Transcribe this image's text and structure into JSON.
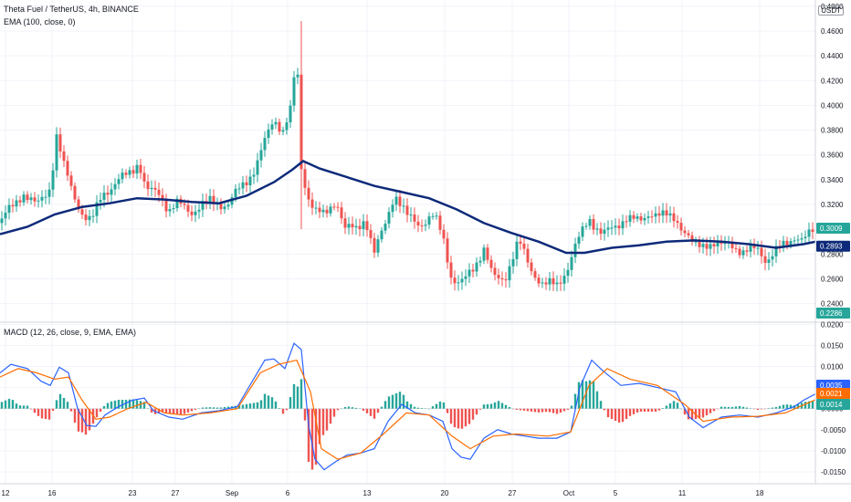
{
  "header": {
    "title": "Theta Fuel / TetherUS, 4h, BINANCE",
    "ema_label": "EMA (100, close, 0)",
    "macd_label": "MACD (12, 26, close, 9, EMA, EMA)",
    "currency": "USDT"
  },
  "colors": {
    "up": "#26a69a",
    "down": "#ef5350",
    "ema": "#0d2a7a",
    "macd": "#2962ff",
    "signal": "#ff6d00",
    "grid": "#f0f3fa",
    "last_price": "#26a69a",
    "ema_tag": "#0d2a7a",
    "low_tag": "#26a69a"
  },
  "chart_data": [
    {
      "type": "candlestick",
      "title": "Theta Fuel / TetherUS, 4h, BINANCE",
      "x_ticks": [
        "12",
        "16",
        "23",
        "27",
        "Sep",
        "6",
        "13",
        "20",
        "27",
        "Oct",
        "5",
        "11",
        "18"
      ],
      "y_ticks": [
        "0.2400",
        "0.2600",
        "0.2800",
        "0.3000",
        "0.3200",
        "0.3400",
        "0.3600",
        "0.3800",
        "0.4000",
        "0.4200",
        "0.4400",
        "0.4600",
        "0.4800"
      ],
      "ylim": [
        0.225,
        0.485
      ],
      "price_path": [
        [
          0,
          0.305
        ],
        [
          10,
          0.315
        ],
        [
          25,
          0.33
        ],
        [
          40,
          0.318
        ],
        [
          55,
          0.335
        ],
        [
          62,
          0.375
        ],
        [
          70,
          0.35
        ],
        [
          80,
          0.33
        ],
        [
          92,
          0.31
        ],
        [
          100,
          0.305
        ],
        [
          112,
          0.33
        ],
        [
          125,
          0.335
        ],
        [
          140,
          0.345
        ],
        [
          152,
          0.355
        ],
        [
          160,
          0.33
        ],
        [
          175,
          0.33
        ],
        [
          185,
          0.315
        ],
        [
          195,
          0.32
        ],
        [
          210,
          0.315
        ],
        [
          230,
          0.322
        ],
        [
          250,
          0.32
        ],
        [
          265,
          0.335
        ],
        [
          280,
          0.35
        ],
        [
          290,
          0.37
        ],
        [
          300,
          0.39
        ],
        [
          310,
          0.38
        ],
        [
          318,
          0.395
        ],
        [
          325,
          0.44
        ],
        [
          330,
          0.35
        ],
        [
          336,
          0.33
        ],
        [
          345,
          0.315
        ],
        [
          355,
          0.31
        ],
        [
          368,
          0.325
        ],
        [
          378,
          0.3
        ],
        [
          390,
          0.3
        ],
        [
          400,
          0.31
        ],
        [
          410,
          0.28
        ],
        [
          420,
          0.3
        ],
        [
          432,
          0.33
        ],
        [
          445,
          0.31
        ],
        [
          460,
          0.305
        ],
        [
          475,
          0.31
        ],
        [
          485,
          0.295
        ],
        [
          495,
          0.26
        ],
        [
          505,
          0.255
        ],
        [
          515,
          0.265
        ],
        [
          530,
          0.285
        ],
        [
          540,
          0.26
        ],
        [
          552,
          0.26
        ],
        [
          568,
          0.29
        ],
        [
          580,
          0.27
        ],
        [
          595,
          0.255
        ],
        [
          610,
          0.255
        ],
        [
          622,
          0.27
        ],
        [
          630,
          0.285
        ],
        [
          645,
          0.31
        ],
        [
          660,
          0.295
        ],
        [
          670,
          0.3
        ],
        [
          685,
          0.31
        ],
        [
          700,
          0.305
        ],
        [
          712,
          0.315
        ],
        [
          725,
          0.31
        ],
        [
          740,
          0.31
        ],
        [
          752,
          0.295
        ],
        [
          760,
          0.285
        ],
        [
          775,
          0.29
        ],
        [
          790,
          0.285
        ],
        [
          800,
          0.29
        ],
        [
          815,
          0.28
        ],
        [
          830,
          0.285
        ],
        [
          840,
          0.275
        ],
        [
          855,
          0.285
        ],
        [
          870,
          0.295
        ],
        [
          880,
          0.29
        ],
        [
          893,
          0.301
        ]
      ],
      "ema_series": {
        "name": "EMA (100, close, 0)",
        "points": [
          [
            0,
            0.296
          ],
          [
            30,
            0.302
          ],
          [
            60,
            0.312
          ],
          [
            90,
            0.318
          ],
          [
            120,
            0.321
          ],
          [
            150,
            0.325
          ],
          [
            180,
            0.324
          ],
          [
            210,
            0.322
          ],
          [
            240,
            0.321
          ],
          [
            270,
            0.327
          ],
          [
            300,
            0.338
          ],
          [
            320,
            0.348
          ],
          [
            332,
            0.355
          ],
          [
            350,
            0.349
          ],
          [
            380,
            0.342
          ],
          [
            410,
            0.335
          ],
          [
            440,
            0.33
          ],
          [
            470,
            0.325
          ],
          [
            500,
            0.316
          ],
          [
            530,
            0.305
          ],
          [
            560,
            0.297
          ],
          [
            590,
            0.29
          ],
          [
            620,
            0.281
          ],
          [
            640,
            0.281
          ],
          [
            670,
            0.285
          ],
          [
            700,
            0.287
          ],
          [
            730,
            0.29
          ],
          [
            760,
            0.291
          ],
          [
            790,
            0.29
          ],
          [
            820,
            0.288
          ],
          [
            850,
            0.285
          ],
          [
            880,
            0.288
          ],
          [
            893,
            0.29
          ]
        ]
      },
      "tags": {
        "last_price": "0.3009",
        "ema": "0.2893",
        "low": "0.2286"
      }
    },
    {
      "type": "macd",
      "title": "MACD (12, 26, close, 9, EMA, EMA)",
      "y_ticks": [
        "-0.0150",
        "-0.0100",
        "-0.0050",
        "0.0000",
        "0.0050",
        "0.0100",
        "0.0150",
        "0.0200"
      ],
      "ylim": [
        -0.0178,
        0.0205
      ],
      "macd_path": [
        [
          0,
          0.0085
        ],
        [
          12,
          0.0105
        ],
        [
          30,
          0.0095
        ],
        [
          45,
          0.0065
        ],
        [
          55,
          0.0055
        ],
        [
          65,
          0.0098
        ],
        [
          75,
          0.0085
        ],
        [
          85,
          0.0
        ],
        [
          95,
          -0.004
        ],
        [
          105,
          -0.0042
        ],
        [
          115,
          -0.0015
        ],
        [
          130,
          0.0005
        ],
        [
          145,
          0.002
        ],
        [
          158,
          0.0025
        ],
        [
          168,
          -0.0005
        ],
        [
          185,
          -0.002
        ],
        [
          200,
          -0.0025
        ],
        [
          220,
          -0.001
        ],
        [
          240,
          -0.0005
        ],
        [
          260,
          0.0005
        ],
        [
          275,
          0.006
        ],
        [
          290,
          0.0115
        ],
        [
          300,
          0.0118
        ],
        [
          312,
          0.0095
        ],
        [
          322,
          0.0155
        ],
        [
          330,
          0.014
        ],
        [
          338,
          -0.004
        ],
        [
          345,
          -0.012
        ],
        [
          355,
          -0.0145
        ],
        [
          368,
          -0.0125
        ],
        [
          380,
          -0.011
        ],
        [
          395,
          -0.0105
        ],
        [
          410,
          -0.0095
        ],
        [
          425,
          -0.003
        ],
        [
          440,
          0.001
        ],
        [
          455,
          -0.001
        ],
        [
          470,
          -0.0015
        ],
        [
          485,
          -0.003
        ],
        [
          495,
          -0.0095
        ],
        [
          505,
          -0.0115
        ],
        [
          515,
          -0.012
        ],
        [
          530,
          -0.007
        ],
        [
          545,
          -0.005
        ],
        [
          560,
          -0.006
        ],
        [
          575,
          -0.0065
        ],
        [
          590,
          -0.007
        ],
        [
          610,
          -0.007
        ],
        [
          625,
          -0.0055
        ],
        [
          635,
          0.005
        ],
        [
          648,
          0.0115
        ],
        [
          660,
          0.009
        ],
        [
          680,
          0.0055
        ],
        [
          700,
          0.006
        ],
        [
          720,
          0.005
        ],
        [
          740,
          0.004
        ],
        [
          755,
          -0.002
        ],
        [
          770,
          -0.0045
        ],
        [
          790,
          -0.002
        ],
        [
          810,
          -0.0015
        ],
        [
          830,
          -0.002
        ],
        [
          850,
          -0.001
        ],
        [
          870,
          0.0005
        ],
        [
          880,
          0.002
        ],
        [
          893,
          0.0035
        ]
      ],
      "signal_path": [
        [
          0,
          0.0075
        ],
        [
          20,
          0.0095
        ],
        [
          40,
          0.0085
        ],
        [
          60,
          0.007
        ],
        [
          75,
          0.0075
        ],
        [
          90,
          0.002
        ],
        [
          105,
          -0.0025
        ],
        [
          120,
          -0.002
        ],
        [
          140,
          0.0
        ],
        [
          160,
          0.0015
        ],
        [
          180,
          -0.001
        ],
        [
          200,
          -0.0015
        ],
        [
          230,
          -0.001
        ],
        [
          260,
          0.0
        ],
        [
          285,
          0.0085
        ],
        [
          305,
          0.0105
        ],
        [
          325,
          0.0115
        ],
        [
          340,
          0.004
        ],
        [
          352,
          -0.0095
        ],
        [
          370,
          -0.012
        ],
        [
          395,
          -0.0105
        ],
        [
          420,
          -0.006
        ],
        [
          445,
          -0.001
        ],
        [
          470,
          -0.0015
        ],
        [
          495,
          -0.0065
        ],
        [
          515,
          -0.0095
        ],
        [
          540,
          -0.0065
        ],
        [
          565,
          -0.006
        ],
        [
          600,
          -0.0065
        ],
        [
          625,
          -0.0055
        ],
        [
          645,
          0.0055
        ],
        [
          665,
          0.0095
        ],
        [
          690,
          0.007
        ],
        [
          720,
          0.0055
        ],
        [
          750,
          0.001
        ],
        [
          770,
          -0.003
        ],
        [
          800,
          -0.002
        ],
        [
          830,
          -0.0018
        ],
        [
          860,
          -0.001
        ],
        [
          893,
          0.0021
        ]
      ],
      "tags": {
        "macd": "0.0035",
        "signal": "0.0021",
        "histogram": "0.0014"
      }
    }
  ]
}
